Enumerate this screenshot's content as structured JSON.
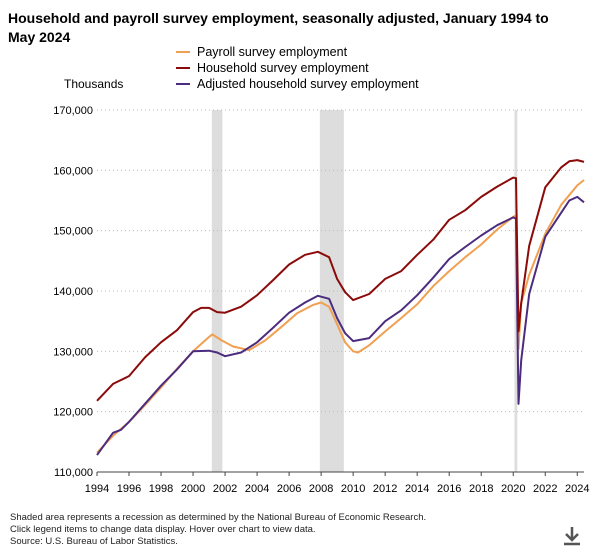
{
  "title": "Household and payroll survey employment, seasonally adjusted, January 1994 to May 2024",
  "unit_label": "Thousands",
  "footnotes": [
    "Shaded area represents a recession as determined by the National Bureau of Economic Research.",
    "Click legend items to change data display. Hover over chart to view data.",
    "Source: U.S. Bureau of Labor Statistics."
  ],
  "download_icon": "download-icon",
  "colors": {
    "payroll": "#F0A050",
    "household": "#8B0A0A",
    "adjusted": "#4B2C7E",
    "recession": "#DDDDDD",
    "grid": "#BBBBBB"
  },
  "chart_data": {
    "type": "line",
    "xlabel": "",
    "ylabel": "Thousands",
    "xlim": [
      1994.0,
      2024.42
    ],
    "ylim": [
      110000,
      170000
    ],
    "grid": true,
    "legend_position": "top",
    "x_ticks": [
      1994,
      1996,
      1998,
      2000,
      2002,
      2004,
      2006,
      2008,
      2010,
      2012,
      2014,
      2016,
      2018,
      2020,
      2022,
      2024
    ],
    "y_ticks": [
      110000,
      120000,
      130000,
      140000,
      150000,
      160000,
      170000
    ],
    "y_tick_labels": [
      "110,000",
      "120,000",
      "130,000",
      "140,000",
      "150,000",
      "160,000",
      "170,000"
    ],
    "recessions": [
      [
        2001.17,
        2001.83
      ],
      [
        2007.92,
        2009.42
      ],
      [
        2020.08,
        2020.25
      ]
    ],
    "series": [
      {
        "name": "Payroll survey employment",
        "points": [
          [
            1994.0,
            113200
          ],
          [
            1995.0,
            116000
          ],
          [
            1996.0,
            118300
          ],
          [
            1997.0,
            121100
          ],
          [
            1998.0,
            124000
          ],
          [
            1999.0,
            127100
          ],
          [
            2000.0,
            130000
          ],
          [
            2001.0,
            132400
          ],
          [
            2001.2,
            132800
          ],
          [
            2001.8,
            131800
          ],
          [
            2002.5,
            130800
          ],
          [
            2003.5,
            130200
          ],
          [
            2004.5,
            131800
          ],
          [
            2005.5,
            134000
          ],
          [
            2006.5,
            136300
          ],
          [
            2007.5,
            137700
          ],
          [
            2008.0,
            138100
          ],
          [
            2008.5,
            137400
          ],
          [
            2009.0,
            134500
          ],
          [
            2009.5,
            131500
          ],
          [
            2010.0,
            130000
          ],
          [
            2010.3,
            129800
          ],
          [
            2011.0,
            131000
          ],
          [
            2012.0,
            133300
          ],
          [
            2013.0,
            135500
          ],
          [
            2014.0,
            137800
          ],
          [
            2015.0,
            140800
          ],
          [
            2016.0,
            143300
          ],
          [
            2017.0,
            145600
          ],
          [
            2018.0,
            147700
          ],
          [
            2019.0,
            150200
          ],
          [
            2020.0,
            152300
          ],
          [
            2020.17,
            152500
          ],
          [
            2020.33,
            130400
          ],
          [
            2020.5,
            138000
          ],
          [
            2021.0,
            142700
          ],
          [
            2022.0,
            149500
          ],
          [
            2023.0,
            154300
          ],
          [
            2024.0,
            157500
          ],
          [
            2024.42,
            158400
          ]
        ]
      },
      {
        "name": "Household survey employment",
        "points": [
          [
            1994.0,
            121800
          ],
          [
            1995.0,
            124600
          ],
          [
            1996.0,
            125900
          ],
          [
            1997.0,
            129000
          ],
          [
            1998.0,
            131500
          ],
          [
            1999.0,
            133500
          ],
          [
            2000.0,
            136500
          ],
          [
            2000.5,
            137200
          ],
          [
            2001.0,
            137200
          ],
          [
            2001.5,
            136500
          ],
          [
            2002.0,
            136400
          ],
          [
            2003.0,
            137400
          ],
          [
            2004.0,
            139300
          ],
          [
            2005.0,
            141800
          ],
          [
            2006.0,
            144400
          ],
          [
            2007.0,
            146000
          ],
          [
            2007.8,
            146500
          ],
          [
            2008.5,
            145600
          ],
          [
            2009.0,
            142000
          ],
          [
            2009.5,
            139800
          ],
          [
            2010.0,
            138500
          ],
          [
            2011.0,
            139500
          ],
          [
            2012.0,
            142000
          ],
          [
            2013.0,
            143300
          ],
          [
            2014.0,
            146000
          ],
          [
            2015.0,
            148500
          ],
          [
            2016.0,
            151800
          ],
          [
            2017.0,
            153400
          ],
          [
            2018.0,
            155600
          ],
          [
            2019.0,
            157300
          ],
          [
            2020.0,
            158800
          ],
          [
            2020.17,
            158700
          ],
          [
            2020.33,
            133300
          ],
          [
            2020.5,
            138000
          ],
          [
            2021.0,
            147500
          ],
          [
            2022.0,
            157200
          ],
          [
            2023.0,
            160500
          ],
          [
            2023.5,
            161500
          ],
          [
            2024.0,
            161700
          ],
          [
            2024.42,
            161400
          ]
        ]
      },
      {
        "name": "Adjusted household survey employment",
        "points": [
          [
            1994.0,
            112800
          ],
          [
            1995.0,
            116500
          ],
          [
            1995.5,
            117000
          ],
          [
            1996.0,
            118300
          ],
          [
            1997.0,
            121300
          ],
          [
            1998.0,
            124300
          ],
          [
            1999.0,
            127000
          ],
          [
            2000.0,
            130000
          ],
          [
            2001.0,
            130100
          ],
          [
            2001.5,
            129800
          ],
          [
            2002.0,
            129200
          ],
          [
            2003.0,
            129800
          ],
          [
            2004.0,
            131500
          ],
          [
            2005.0,
            133900
          ],
          [
            2006.0,
            136400
          ],
          [
            2007.0,
            138100
          ],
          [
            2007.8,
            139200
          ],
          [
            2008.5,
            138700
          ],
          [
            2009.0,
            135500
          ],
          [
            2009.5,
            133000
          ],
          [
            2010.0,
            131700
          ],
          [
            2011.0,
            132200
          ],
          [
            2012.0,
            135000
          ],
          [
            2013.0,
            136800
          ],
          [
            2014.0,
            139300
          ],
          [
            2015.0,
            142200
          ],
          [
            2016.0,
            145300
          ],
          [
            2017.0,
            147300
          ],
          [
            2018.0,
            149200
          ],
          [
            2019.0,
            150900
          ],
          [
            2020.0,
            152200
          ],
          [
            2020.17,
            152000
          ],
          [
            2020.33,
            121300
          ],
          [
            2020.5,
            128500
          ],
          [
            2021.0,
            139500
          ],
          [
            2022.0,
            149000
          ],
          [
            2023.0,
            153000
          ],
          [
            2023.5,
            155000
          ],
          [
            2024.0,
            155600
          ],
          [
            2024.42,
            154700
          ]
        ]
      }
    ]
  }
}
